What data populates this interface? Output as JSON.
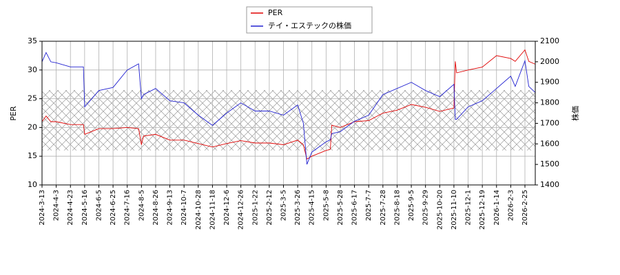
{
  "chart_data": {
    "type": "line",
    "x": [
      "2024-3-13",
      "2024-3-19",
      "2024-3-26",
      "2024-4-3",
      "2024-4-23",
      "2024-5-14",
      "2024-5-16",
      "2024-6-5",
      "2024-6-25",
      "2024-7-16",
      "2024-8-1",
      "2024-8-5",
      "2024-8-8",
      "2024-8-26",
      "2024-9-13",
      "2024-10-7",
      "2024-10-28",
      "2024-11-18",
      "2024-12-6",
      "2024-12-26",
      "2025-1-22",
      "2025-2-12",
      "2025-3-5",
      "2025-3-26",
      "2025-4-3",
      "2025-4-8",
      "2025-4-15",
      "2025-5-8",
      "2025-5-14",
      "2025-5-16",
      "2025-5-28",
      "2025-6-17",
      "2025-7-7",
      "2025-7-28",
      "2025-8-18",
      "2025-9-5",
      "2025-9-29",
      "2025-10-20",
      "2025-11-10",
      "2025-11-12",
      "2025-11-14",
      "2025-12-1",
      "2025-12-19",
      "2026-1-14",
      "2026-2-3",
      "2026-2-10",
      "2026-2-25",
      "2026-3-3",
      "2026-3-13"
    ],
    "series": [
      {
        "name": "PER",
        "color": "#e00000",
        "values": [
          21.0,
          22.0,
          21.0,
          21.0,
          20.5,
          20.5,
          18.8,
          19.8,
          19.8,
          20.0,
          19.8,
          17.0,
          18.5,
          18.8,
          17.8,
          17.8,
          17.2,
          16.6,
          17.2,
          17.7,
          17.3,
          17.3,
          17.0,
          17.8,
          17.0,
          14.5,
          15.0,
          16.0,
          16.2,
          20.4,
          20.0,
          21.0,
          21.2,
          22.5,
          23.0,
          24.0,
          23.5,
          22.8,
          23.4,
          31.5,
          29.5,
          30.0,
          30.5,
          32.5,
          32.0,
          31.5,
          33.5,
          31.5,
          31.0
        ]
      },
      {
        "name": "テイ・エステックの株価",
        "color": "#2020d0",
        "axis": "y2",
        "values": [
          2000,
          2045,
          2000,
          1995,
          1975,
          1975,
          1780,
          1860,
          1875,
          1960,
          1990,
          1820,
          1840,
          1870,
          1810,
          1800,
          1740,
          1690,
          1750,
          1800,
          1760,
          1760,
          1740,
          1790,
          1700,
          1500,
          1560,
          1610,
          1620,
          1650,
          1660,
          1710,
          1740,
          1840,
          1870,
          1900,
          1860,
          1830,
          1890,
          1720,
          1720,
          1780,
          1810,
          1870,
          1930,
          1880,
          2005,
          1880,
          1850
        ]
      }
    ],
    "xlim": [
      "2024-3-13",
      "2026-3-13"
    ],
    "xticks": [
      "2024-3-13",
      "2024-4-3",
      "2024-4-23",
      "2024-5-16",
      "2024-6-5",
      "2024-6-25",
      "2024-7-16",
      "2024-8-5",
      "2024-8-26",
      "2024-9-13",
      "2024-10-7",
      "2024-10-28",
      "2024-11-18",
      "2024-12-6",
      "2024-12-26",
      "2025-1-22",
      "2025-2-12",
      "2025-3-5",
      "2025-3-26",
      "2025-4-15",
      "2025-5-8",
      "2025-5-28",
      "2025-6-17",
      "2025-7-7",
      "2025-7-28",
      "2025-8-18",
      "2025-9-5",
      "2025-9-29",
      "2025-10-20",
      "2025-11-10",
      "2025-12-1",
      "2025-12-19",
      "2026-1-14",
      "2026-2-3",
      "2026-2-25"
    ],
    "ylabel": "PER",
    "ylim": [
      10,
      35
    ],
    "yticks": [
      10,
      15,
      20,
      25,
      30,
      35
    ],
    "y2label": "株価",
    "y2lim": [
      1400,
      2100
    ],
    "y2ticks": [
      1400,
      1500,
      1600,
      1700,
      1800,
      1900,
      2000,
      2100
    ],
    "shaded_range": [
      16,
      26.5
    ],
    "grid": true,
    "legend": "top"
  }
}
